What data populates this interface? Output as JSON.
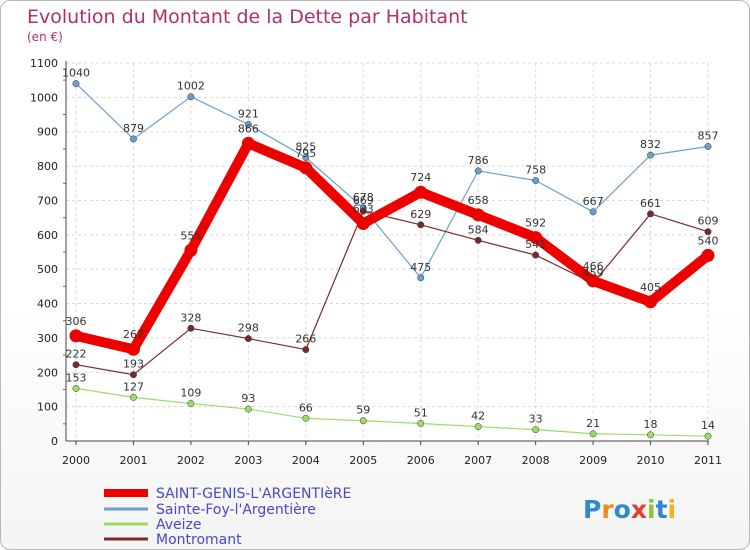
{
  "title": "Evolution du Montant de la Dette par Habitant",
  "subtitle": "(en €)",
  "logo": {
    "letters": [
      "P",
      "r",
      "o",
      "x",
      "i",
      "t",
      "i"
    ],
    "colors": [
      "#2f89d1",
      "#f08b1c",
      "#2f89d1",
      "#e53e2e",
      "#8fc33b",
      "#2f89d1",
      "#f2b21b"
    ]
  },
  "chart_data": {
    "type": "line",
    "x": [
      "2000",
      "2001",
      "2002",
      "2003",
      "2004",
      "2005",
      "2006",
      "2007",
      "2008",
      "2009",
      "2010",
      "2011"
    ],
    "ylim": [
      0,
      1100
    ],
    "yticks": [
      "0",
      "100",
      "200",
      "300",
      "400",
      "500",
      "600",
      "700",
      "800",
      "900",
      "1000",
      "1100"
    ],
    "grid": true,
    "legend_position": "bottom-left",
    "series": [
      {
        "name": "SAINT-GENIS-L'ARGENTIèRE",
        "color": "#ee0000",
        "width": 10,
        "values": [
          306,
          267,
          555,
          866,
          795,
          633,
          724,
          658,
          592,
          466,
          405,
          540
        ],
        "labels": [
          "306",
          "267",
          "555",
          "866",
          "795",
          "633",
          "724",
          "658",
          "592",
          "466",
          "405",
          "540"
        ]
      },
      {
        "name": "Sainte-Foy-l'Argentière",
        "color": "#6a9fd3",
        "width": 1.2,
        "values": [
          1040,
          879,
          1002,
          921,
          825,
          678,
          475,
          786,
          758,
          667,
          832,
          857
        ],
        "labels": [
          "1040",
          "879",
          "1002",
          "921",
          "825",
          "678",
          "475",
          "786",
          "758",
          "667",
          "832",
          "857"
        ]
      },
      {
        "name": "Aveize",
        "color": "#99dd66",
        "width": 1.2,
        "values": [
          153,
          127,
          109,
          93,
          66,
          59,
          51,
          42,
          33,
          21,
          18,
          14
        ],
        "labels": [
          "153",
          "127",
          "109",
          "93",
          "66",
          "59",
          "51",
          "42",
          "33",
          "21",
          "18",
          "14"
        ]
      },
      {
        "name": "Montromant",
        "color": "#7a2a2a",
        "width": 1.2,
        "values": [
          222,
          193,
          328,
          298,
          266,
          669,
          629,
          584,
          541,
          459,
          661,
          609
        ],
        "labels": [
          "222",
          "193",
          "328",
          "298",
          "266",
          "669",
          "629",
          "584",
          "541",
          "459",
          "661",
          "609"
        ]
      }
    ]
  }
}
